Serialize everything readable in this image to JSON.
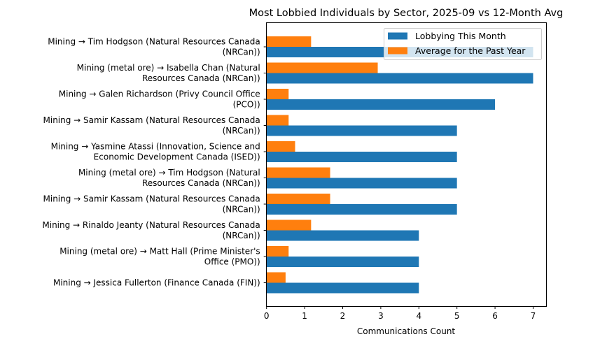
{
  "chart_data": {
    "type": "bar",
    "orientation": "horizontal",
    "title": "Most Lobbied Individuals by Sector, 2025-09 vs 12-Month Avg",
    "xlabel": "Communications Count",
    "ylabel": "",
    "xlim": [
      0,
      7.35
    ],
    "xticks": [
      "0",
      "1",
      "2",
      "3",
      "4",
      "5",
      "6",
      "7"
    ],
    "legend_placement": "top-right",
    "grid": false,
    "categories": [
      [
        "Mining → Tim Hodgson (Natural Resources Canada",
        "(NRCan))"
      ],
      [
        "Mining (metal ore) → Isabella Chan (Natural",
        "Resources Canada (NRCan))"
      ],
      [
        "Mining → Galen Richardson (Privy Council Office",
        "(PCO))"
      ],
      [
        "Mining → Samir Kassam (Natural Resources Canada",
        "(NRCan))"
      ],
      [
        "Mining → Yasmine Atassi (Innovation, Science and",
        "Economic Development Canada (ISED))"
      ],
      [
        "Mining (metal ore) → Tim Hodgson (Natural",
        "Resources Canada (NRCan))"
      ],
      [
        "Mining → Samir Kassam (Natural Resources Canada",
        "(NRCan))"
      ],
      [
        "Mining → Rinaldo Jeanty (Natural Resources Canada",
        "(NRCan))"
      ],
      [
        "Mining (metal ore) → Matt Hall (Prime Minister's",
        "Office (PMO))"
      ],
      [
        "Mining → Jessica Fullerton (Finance Canada (FIN))"
      ]
    ],
    "series": [
      {
        "name": "Lobbying This Month",
        "color": "#1f77b4",
        "values": [
          7,
          7,
          6,
          5,
          5,
          5,
          5,
          4,
          4,
          4
        ]
      },
      {
        "name": "Average for the Past Year",
        "color": "#ff7f0e",
        "values": [
          1.17,
          2.92,
          0.58,
          0.58,
          0.75,
          1.67,
          1.67,
          1.17,
          0.58,
          0.5
        ]
      }
    ]
  }
}
